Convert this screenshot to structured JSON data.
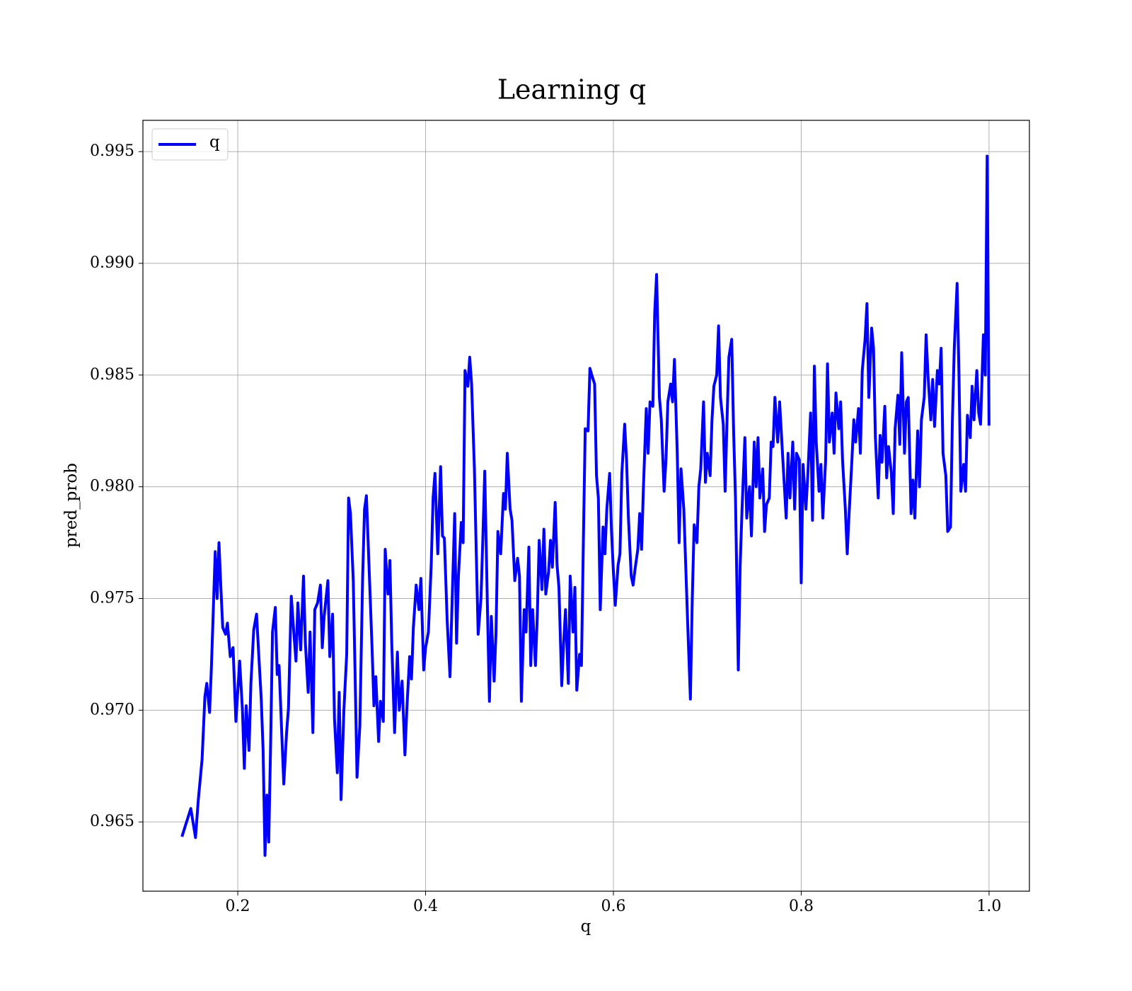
{
  "chart_data": {
    "type": "line",
    "title": "Learning q",
    "xlabel": "q",
    "ylabel": "pred_prob",
    "x": [
      0.141,
      0.15,
      0.155,
      0.158,
      0.162,
      0.165,
      0.167,
      0.17,
      0.172,
      0.176,
      0.178,
      0.18,
      0.182,
      0.184,
      0.187,
      0.189,
      0.192,
      0.195,
      0.198,
      0.202,
      0.205,
      0.207,
      0.209,
      0.212,
      0.214,
      0.217,
      0.22,
      0.223,
      0.225,
      0.227,
      0.229,
      0.231,
      0.233,
      0.235,
      0.237,
      0.24,
      0.242,
      0.244,
      0.247,
      0.249,
      0.252,
      0.254,
      0.257,
      0.26,
      0.262,
      0.264,
      0.267,
      0.27,
      0.272,
      0.275,
      0.277,
      0.28,
      0.282,
      0.285,
      0.288,
      0.29,
      0.292,
      0.296,
      0.298,
      0.301,
      0.303,
      0.306,
      0.308,
      0.31,
      0.313,
      0.316,
      0.318,
      0.32,
      0.323,
      0.325,
      0.327,
      0.33,
      0.333,
      0.335,
      0.337,
      0.34,
      0.343,
      0.345,
      0.347,
      0.35,
      0.352,
      0.355,
      0.357,
      0.36,
      0.362,
      0.364,
      0.367,
      0.37,
      0.372,
      0.375,
      0.378,
      0.38,
      0.383,
      0.385,
      0.387,
      0.39,
      0.393,
      0.395,
      0.398,
      0.4,
      0.403,
      0.406,
      0.408,
      0.41,
      0.413,
      0.416,
      0.418,
      0.42,
      0.423,
      0.426,
      0.428,
      0.431,
      0.433,
      0.435,
      0.438,
      0.44,
      0.442,
      0.445,
      0.447,
      0.449,
      0.452,
      0.454,
      0.456,
      0.459,
      0.461,
      0.463,
      0.466,
      0.468,
      0.47,
      0.473,
      0.475,
      0.477,
      0.48,
      0.483,
      0.485,
      0.487,
      0.49,
      0.492,
      0.495,
      0.498,
      0.5,
      0.502,
      0.505,
      0.507,
      0.51,
      0.512,
      0.514,
      0.517,
      0.519,
      0.521,
      0.524,
      0.526,
      0.528,
      0.531,
      0.533,
      0.535,
      0.538,
      0.54,
      0.542,
      0.545,
      0.547,
      0.549,
      0.552,
      0.554,
      0.557,
      0.559,
      0.561,
      0.564,
      0.566,
      0.568,
      0.57,
      0.573,
      0.575,
      0.577,
      0.58,
      0.582,
      0.584,
      0.586,
      0.589,
      0.591,
      0.593,
      0.596,
      0.598,
      0.6,
      0.602,
      0.605,
      0.607,
      0.609,
      0.612,
      0.614,
      0.616,
      0.619,
      0.621,
      0.623,
      0.626,
      0.628,
      0.63,
      0.632,
      0.635,
      0.637,
      0.639,
      0.642,
      0.644,
      0.646,
      0.649,
      0.651,
      0.654,
      0.656,
      0.658,
      0.661,
      0.663,
      0.665,
      0.668,
      0.67,
      0.672,
      0.675,
      0.677,
      0.679,
      0.682,
      0.684,
      0.686,
      0.689,
      0.691,
      0.693,
      0.696,
      0.698,
      0.7,
      0.703,
      0.705,
      0.707,
      0.71,
      0.712,
      0.714,
      0.717,
      0.719,
      0.721,
      0.723,
      0.726,
      0.728,
      0.73,
      0.733,
      0.735,
      0.737,
      0.74,
      0.742,
      0.745,
      0.747,
      0.75,
      0.752,
      0.754,
      0.756,
      0.759,
      0.761,
      0.763,
      0.766,
      0.768,
      0.77,
      0.772,
      0.775,
      0.777,
      0.779,
      0.781,
      0.784,
      0.786,
      0.788,
      0.791,
      0.793,
      0.795,
      0.798,
      0.8,
      0.802,
      0.805,
      0.807,
      0.81,
      0.812,
      0.814,
      0.816,
      0.819,
      0.821,
      0.823,
      0.826,
      0.828,
      0.83,
      0.833,
      0.835,
      0.837,
      0.84,
      0.842,
      0.844,
      0.847,
      0.849,
      0.851,
      0.854,
      0.856,
      0.858,
      0.861,
      0.863,
      0.865,
      0.868,
      0.87,
      0.872,
      0.875,
      0.877,
      0.879,
      0.882,
      0.884,
      0.886,
      0.889,
      0.891,
      0.893,
      0.896,
      0.898,
      0.9,
      0.903,
      0.905,
      0.907,
      0.91,
      0.912,
      0.914,
      0.917,
      0.919,
      0.921,
      0.924,
      0.926,
      0.928,
      0.931,
      0.933,
      0.935,
      0.938,
      0.94,
      0.942,
      0.945,
      0.947,
      0.949,
      0.951,
      0.954,
      0.956,
      0.959,
      0.961,
      0.963,
      0.966,
      0.968,
      0.97,
      0.973,
      0.975,
      0.977,
      0.98,
      0.982,
      0.984,
      0.987,
      0.989,
      0.991,
      0.994,
      0.996,
      0.998,
      1.0
    ],
    "series": [
      {
        "name": "q",
        "color": "#0000ff",
        "values": [
          0.9644,
          0.9656,
          0.9643,
          0.966,
          0.9678,
          0.9706,
          0.9712,
          0.9699,
          0.972,
          0.9771,
          0.975,
          0.9775,
          0.9755,
          0.9737,
          0.9734,
          0.9739,
          0.9724,
          0.9728,
          0.9695,
          0.9722,
          0.97,
          0.9674,
          0.9702,
          0.9682,
          0.9712,
          0.9736,
          0.9743,
          0.972,
          0.9705,
          0.9682,
          0.9635,
          0.9662,
          0.9641,
          0.9685,
          0.9735,
          0.9746,
          0.9716,
          0.972,
          0.9688,
          0.9667,
          0.969,
          0.9701,
          0.9751,
          0.9733,
          0.9722,
          0.9748,
          0.9727,
          0.976,
          0.973,
          0.9708,
          0.9735,
          0.969,
          0.9745,
          0.9748,
          0.9756,
          0.9728,
          0.9742,
          0.9758,
          0.9724,
          0.9743,
          0.9696,
          0.9672,
          0.9708,
          0.966,
          0.97,
          0.9725,
          0.9795,
          0.9788,
          0.9758,
          0.9715,
          0.967,
          0.9693,
          0.976,
          0.979,
          0.9796,
          0.9762,
          0.9728,
          0.9702,
          0.9715,
          0.9686,
          0.9704,
          0.9695,
          0.9772,
          0.9752,
          0.9767,
          0.973,
          0.969,
          0.9726,
          0.97,
          0.9713,
          0.968,
          0.97,
          0.9724,
          0.9714,
          0.9737,
          0.9756,
          0.9745,
          0.9759,
          0.9718,
          0.9728,
          0.9735,
          0.9765,
          0.9795,
          0.9806,
          0.977,
          0.9809,
          0.9778,
          0.9777,
          0.974,
          0.9715,
          0.9745,
          0.9788,
          0.973,
          0.976,
          0.9784,
          0.9775,
          0.9852,
          0.9845,
          0.9858,
          0.9846,
          0.9808,
          0.977,
          0.9734,
          0.975,
          0.9777,
          0.9807,
          0.9743,
          0.9704,
          0.9742,
          0.9713,
          0.9735,
          0.978,
          0.977,
          0.9797,
          0.979,
          0.9815,
          0.979,
          0.9785,
          0.9758,
          0.9768,
          0.976,
          0.9704,
          0.9745,
          0.9735,
          0.9773,
          0.972,
          0.9745,
          0.972,
          0.9743,
          0.9776,
          0.9754,
          0.9781,
          0.9752,
          0.9762,
          0.9776,
          0.9764,
          0.9793,
          0.9765,
          0.9755,
          0.9711,
          0.973,
          0.9745,
          0.9712,
          0.976,
          0.9735,
          0.9755,
          0.9709,
          0.9725,
          0.972,
          0.9775,
          0.9826,
          0.9825,
          0.9853,
          0.985,
          0.9846,
          0.9805,
          0.9795,
          0.9745,
          0.9782,
          0.977,
          0.979,
          0.9806,
          0.978,
          0.9762,
          0.9747,
          0.9765,
          0.977,
          0.9806,
          0.9828,
          0.9812,
          0.9786,
          0.976,
          0.9756,
          0.9763,
          0.9772,
          0.9788,
          0.9772,
          0.98,
          0.9835,
          0.9815,
          0.9838,
          0.9836,
          0.9878,
          0.9895,
          0.984,
          0.983,
          0.9798,
          0.9812,
          0.9838,
          0.9846,
          0.9838,
          0.9857,
          0.9815,
          0.9775,
          0.9808,
          0.979,
          0.9765,
          0.974,
          0.9705,
          0.975,
          0.9783,
          0.9775,
          0.98,
          0.9808,
          0.9838,
          0.9802,
          0.9815,
          0.9805,
          0.983,
          0.9845,
          0.985,
          0.9872,
          0.984,
          0.9828,
          0.9798,
          0.983,
          0.9858,
          0.9866,
          0.9825,
          0.9795,
          0.9718,
          0.9765,
          0.979,
          0.9822,
          0.9786,
          0.98,
          0.9778,
          0.982,
          0.98,
          0.9822,
          0.9795,
          0.9808,
          0.978,
          0.9792,
          0.9795,
          0.982,
          0.9818,
          0.984,
          0.982,
          0.9838,
          0.9823,
          0.9808,
          0.9786,
          0.9815,
          0.9795,
          0.982,
          0.979,
          0.9815,
          0.9812,
          0.9757,
          0.981,
          0.979,
          0.9805,
          0.9833,
          0.9785,
          0.9854,
          0.982,
          0.9798,
          0.981,
          0.9786,
          0.9812,
          0.9855,
          0.982,
          0.9833,
          0.9815,
          0.9842,
          0.9826,
          0.9838,
          0.9812,
          0.979,
          0.977,
          0.9788,
          0.9812,
          0.983,
          0.982,
          0.9835,
          0.9815,
          0.9852,
          0.9866,
          0.9882,
          0.984,
          0.9871,
          0.9862,
          0.9822,
          0.9795,
          0.9823,
          0.9811,
          0.9836,
          0.9804,
          0.9818,
          0.9806,
          0.9788,
          0.9826,
          0.9841,
          0.9819,
          0.986,
          0.9815,
          0.9838,
          0.984,
          0.9788,
          0.9803,
          0.9786,
          0.9825,
          0.98,
          0.983,
          0.984,
          0.9868,
          0.985,
          0.983,
          0.9848,
          0.9827,
          0.9852,
          0.9846,
          0.9862,
          0.9815,
          0.9805,
          0.978,
          0.9782,
          0.983,
          0.9862,
          0.9891,
          0.985,
          0.9798,
          0.981,
          0.9798,
          0.9832,
          0.9822,
          0.9845,
          0.983,
          0.9852,
          0.9833,
          0.9828,
          0.9868,
          0.985,
          0.9948,
          0.9828
        ]
      }
    ],
    "xlim": [
      0.099,
      1.043
    ],
    "ylim": [
      0.9619,
      0.9964
    ],
    "xticks": [
      0.2,
      0.4,
      0.6,
      0.8,
      {
        "value": 1.0,
        "label": "1.0"
      }
    ],
    "yticks": [
      0.965,
      {
        "value": 0.97,
        "label": "0.970"
      },
      0.975,
      {
        "value": 0.98,
        "label": "0.980"
      },
      0.985,
      {
        "value": 0.99,
        "label": "0.990"
      },
      0.995
    ],
    "grid": true,
    "legend": "upper left"
  }
}
